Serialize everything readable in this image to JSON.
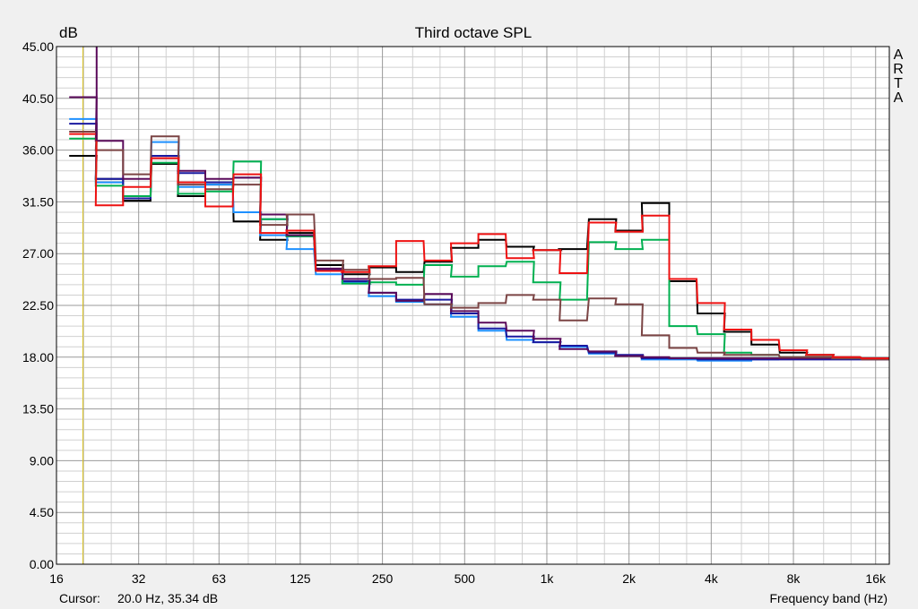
{
  "chart_data": {
    "type": "line",
    "title": "Third octave SPL",
    "ylabel": "dB",
    "xlabel": "Frequency band (Hz)",
    "x_scale": "log",
    "ylim": [
      0,
      45
    ],
    "y_ticks": [
      "0.00",
      "4.50",
      "9.00",
      "13.50",
      "18.00",
      "22.50",
      "27.00",
      "31.50",
      "36.00",
      "40.50",
      "45.00"
    ],
    "x_ticks": [
      {
        "f": 16,
        "label": "16"
      },
      {
        "f": 32,
        "label": "32"
      },
      {
        "f": 63,
        "label": "63"
      },
      {
        "f": 125,
        "label": "125"
      },
      {
        "f": 250,
        "label": "250"
      },
      {
        "f": 500,
        "label": "500"
      },
      {
        "f": 1000,
        "label": "1k"
      },
      {
        "f": 2000,
        "label": "2k"
      },
      {
        "f": 4000,
        "label": "4k"
      },
      {
        "f": 8000,
        "label": "8k"
      },
      {
        "f": 16000,
        "label": "16k"
      }
    ],
    "grid": true,
    "bands": [
      20,
      25,
      31.5,
      40,
      50,
      63,
      80,
      100,
      125,
      160,
      200,
      250,
      315,
      400,
      500,
      630,
      800,
      1000,
      1250,
      1600,
      2000,
      2500,
      3150,
      4000,
      5000,
      6300,
      8000,
      10000,
      12500,
      16000
    ],
    "series": [
      {
        "color": "#000000",
        "values": [
          35.5,
          33.5,
          31.6,
          34.8,
          32.0,
          33.0,
          29.8,
          28.2,
          28.8,
          26.0,
          25.2,
          25.8,
          25.4,
          26.3,
          27.5,
          28.2,
          27.6,
          27.3,
          27.4,
          30.0,
          29.0,
          31.4,
          24.6,
          21.8,
          20.2,
          19.1,
          18.4,
          18.2,
          18.0,
          17.9
        ]
      },
      {
        "color": "#1e90ff",
        "values": [
          38.7,
          33.2,
          32.0,
          36.7,
          32.8,
          33.0,
          30.6,
          28.6,
          27.4,
          25.2,
          24.5,
          23.3,
          22.8,
          22.6,
          21.5,
          20.3,
          19.5,
          19.3,
          18.9,
          18.3,
          18.1,
          17.8,
          17.8,
          17.7,
          17.7,
          17.8,
          17.9,
          17.9,
          17.9,
          17.9
        ]
      },
      {
        "color": "#1a1aa0",
        "values": [
          38.3,
          33.5,
          31.8,
          35.5,
          34.0,
          33.2,
          33.6,
          30.0,
          28.5,
          25.6,
          24.6,
          23.6,
          23.0,
          23.0,
          21.8,
          20.5,
          19.8,
          19.3,
          19.0,
          18.4,
          18.2,
          17.9,
          17.9,
          17.8,
          17.8,
          17.8,
          17.8,
          17.8,
          17.8,
          17.8
        ]
      },
      {
        "color": "#00b050",
        "values": [
          37.0,
          32.9,
          32.0,
          34.9,
          32.2,
          32.4,
          35.0,
          30.0,
          28.5,
          25.5,
          24.4,
          24.5,
          24.3,
          26.0,
          25.0,
          25.9,
          26.3,
          24.5,
          23.0,
          28.0,
          27.4,
          28.2,
          20.7,
          20.0,
          18.4,
          18.2,
          18.0,
          18.0,
          17.9,
          17.9
        ]
      },
      {
        "color": "#5a0a5a",
        "values": [
          40.6,
          36.8,
          33.5,
          35.3,
          34.2,
          33.5,
          33.6,
          30.4,
          28.6,
          25.7,
          24.8,
          23.6,
          22.9,
          23.5,
          22.0,
          21.0,
          20.3,
          19.6,
          18.7,
          18.5,
          18.1,
          18.0,
          17.9,
          17.9,
          17.9,
          17.9,
          17.9,
          17.9,
          17.9,
          17.9
        ]
      },
      {
        "color": "#7b4444",
        "values": [
          37.6,
          36.0,
          33.9,
          37.2,
          33.0,
          32.6,
          33.0,
          29.5,
          30.4,
          26.4,
          25.6,
          24.8,
          24.9,
          22.6,
          22.3,
          22.7,
          23.4,
          23.0,
          21.2,
          23.1,
          22.6,
          19.9,
          18.8,
          18.4,
          18.2,
          18.2,
          18.0,
          18.0,
          17.9,
          17.8
        ]
      },
      {
        "color": "#ee1111",
        "values": [
          37.4,
          31.2,
          32.8,
          35.3,
          33.2,
          31.1,
          33.9,
          28.8,
          29.0,
          25.5,
          25.4,
          25.9,
          28.1,
          26.4,
          27.9,
          28.7,
          26.6,
          27.3,
          25.3,
          29.7,
          28.9,
          30.3,
          24.8,
          22.7,
          20.4,
          19.5,
          18.6,
          18.2,
          18.0,
          17.9
        ]
      }
    ],
    "cursor": {
      "f": 20,
      "label": "Cursor:",
      "readout": "20.0 Hz, 35.34 dB"
    },
    "brand": [
      "A",
      "R",
      "T",
      "A"
    ],
    "colors": {
      "background": "#f0f0f0",
      "plot_background": "#ffffff",
      "grid_major": "#999999",
      "grid_minor": "#d0d0d0",
      "cursor": "#d8c020"
    }
  }
}
